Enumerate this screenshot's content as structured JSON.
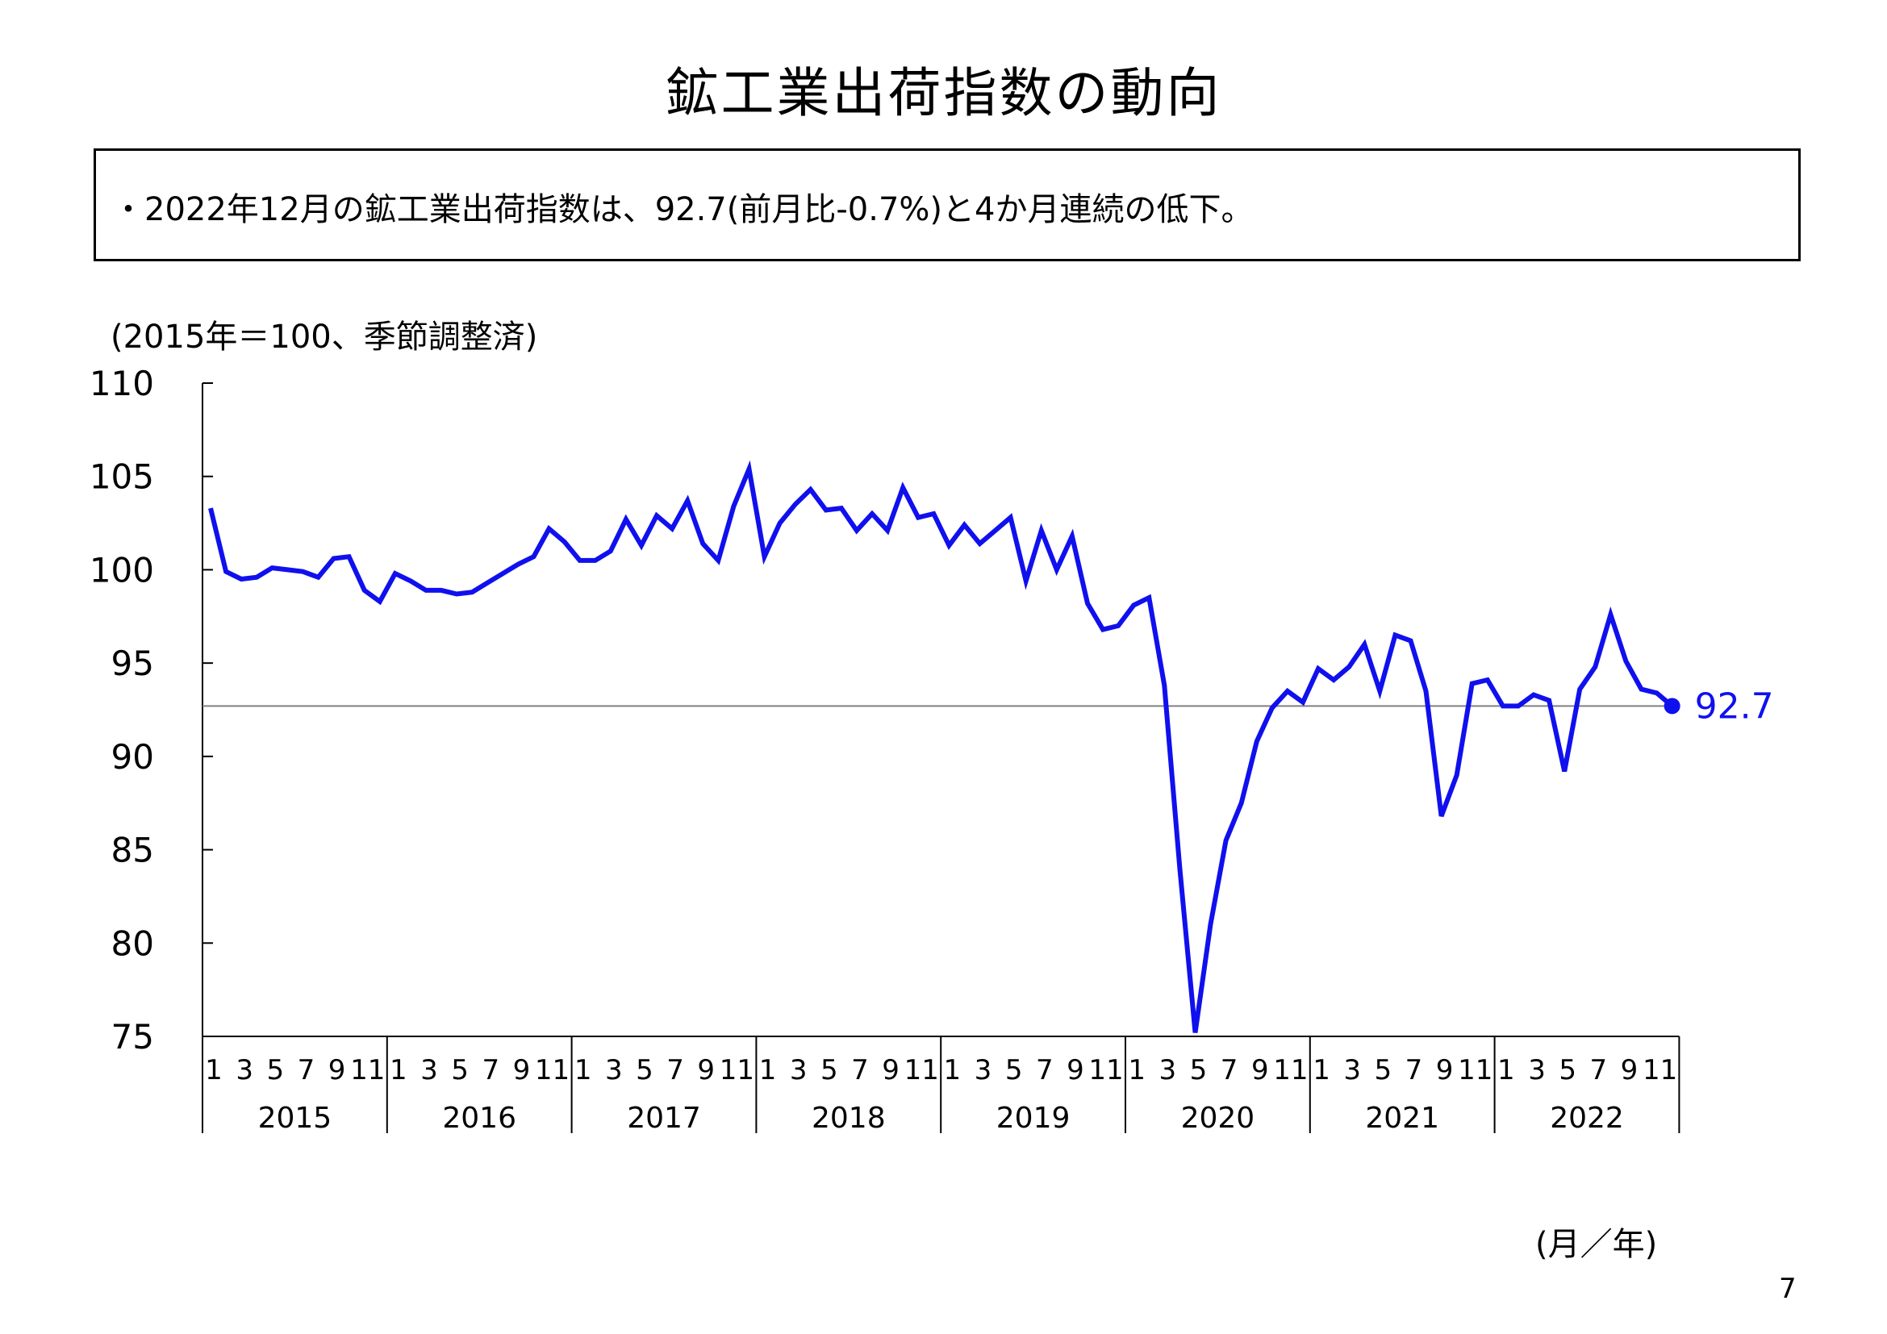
{
  "title": "鉱工業出荷指数の動向",
  "summary": "・2022年12月の鉱工業出荷指数は、92.7(前月比-0.7%)と4か月連続の低下。",
  "unit_note": "(2015年＝100、季節調整済)",
  "x_unit": "(月／年)",
  "page_number": "7",
  "colors": {
    "line": "#1010ee",
    "reference_line": "#808080",
    "axis": "#000000"
  },
  "chart_data": {
    "type": "line",
    "title": "",
    "ylim": [
      75,
      110
    ],
    "yticks": [
      "75",
      "80",
      "85",
      "90",
      "95",
      "100",
      "105",
      "110"
    ],
    "month_tick_labels": [
      "1",
      "3",
      "5",
      "7",
      "9",
      "11"
    ],
    "years": [
      "2015",
      "2016",
      "2017",
      "2018",
      "2019",
      "2020",
      "2021",
      "2022"
    ],
    "reference_value": 92.7,
    "last_value_label": "92.7",
    "series": [
      {
        "values": [
          103.3,
          99.9,
          99.5,
          99.6,
          100.1,
          100.0,
          99.9,
          99.6,
          100.6,
          100.7,
          98.9,
          98.3,
          99.8,
          99.4,
          98.9,
          98.9,
          98.7,
          98.8,
          99.3,
          99.8,
          100.3,
          100.7,
          102.2,
          101.5,
          100.5,
          100.5,
          101.0,
          102.7,
          101.3,
          102.9,
          102.2,
          103.7,
          101.4,
          100.5,
          103.4,
          105.4,
          100.7,
          102.5,
          103.5,
          104.3,
          103.2,
          103.3,
          102.1,
          103.0,
          102.1,
          104.4,
          102.8,
          103.0,
          101.3,
          102.4,
          101.4,
          102.1,
          102.8,
          99.4,
          102.1,
          100.0,
          101.8,
          98.2,
          96.8,
          97.0,
          98.1,
          98.5,
          93.8,
          84.0,
          75.2,
          81.0,
          85.5,
          87.5,
          90.8,
          92.6,
          93.5,
          92.9,
          94.7,
          94.1,
          94.8,
          96.0,
          93.5,
          96.5,
          96.2,
          93.5,
          86.8,
          89.0,
          93.9,
          94.1,
          92.7,
          92.7,
          93.3,
          93.0,
          89.2,
          93.6,
          94.8,
          97.6,
          95.1,
          93.6,
          93.4,
          92.7
        ]
      }
    ]
  }
}
